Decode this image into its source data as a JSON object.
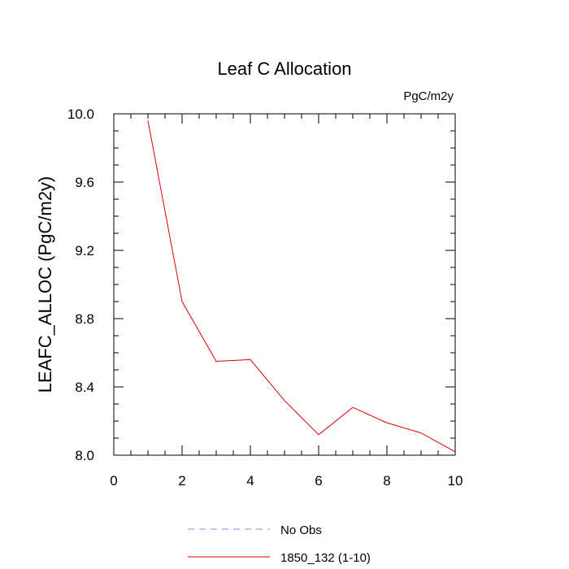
{
  "chart_data": {
    "type": "line",
    "title": "Leaf C Allocation",
    "units": "PgC/m2y",
    "xlabel": "",
    "ylabel": "LEAFC_ALLOC  (PgC/m2y)",
    "xlim": [
      0,
      10
    ],
    "ylim": [
      8.0,
      10.0
    ],
    "x_ticks": [
      0,
      2,
      4,
      6,
      8,
      10
    ],
    "x_tick_labels": [
      "0",
      "2",
      "4",
      "6",
      "8",
      "10"
    ],
    "y_ticks": [
      8.0,
      8.4,
      8.8,
      9.2,
      9.6,
      10.0
    ],
    "y_tick_labels": [
      "8.0",
      "8.4",
      "8.8",
      "9.2",
      "9.6",
      "10.0"
    ],
    "grid": false,
    "legend_position": "bottom",
    "series": [
      {
        "name": "No Obs",
        "color": "#8a8ae6",
        "style": "dashed",
        "x": [],
        "values": []
      },
      {
        "name": "1850_132 (1-10)",
        "color": "#e00000",
        "style": "solid",
        "x": [
          1,
          2,
          3,
          4,
          5,
          6,
          7,
          8,
          9,
          10
        ],
        "values": [
          9.96,
          8.9,
          8.55,
          8.56,
          8.32,
          8.12,
          8.28,
          8.19,
          8.13,
          8.02
        ]
      }
    ]
  }
}
